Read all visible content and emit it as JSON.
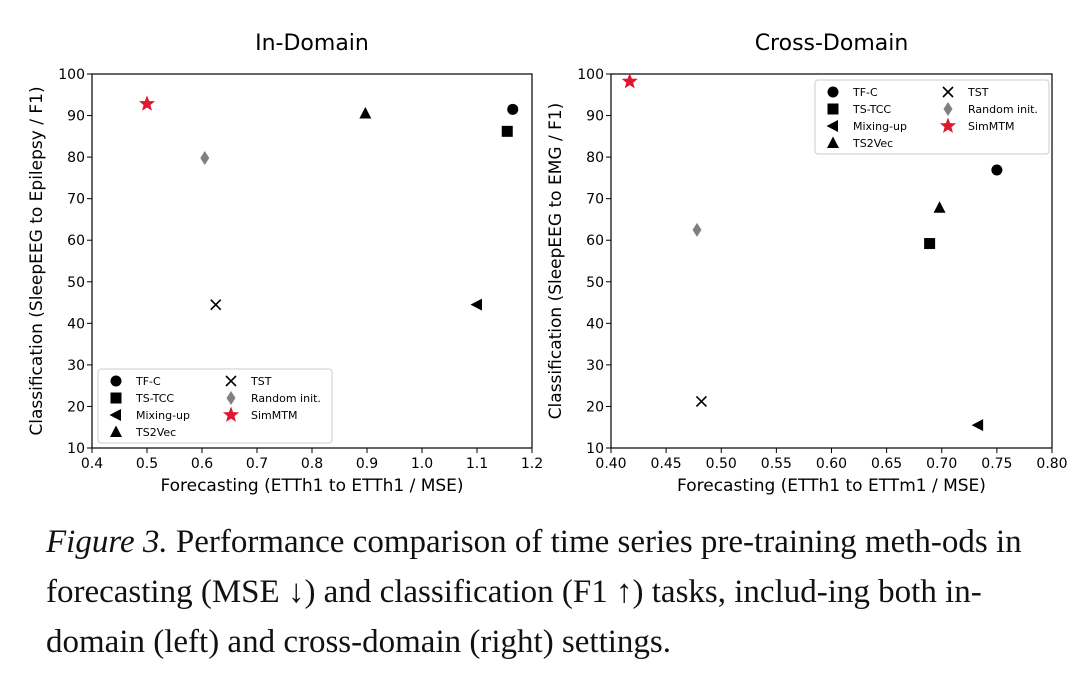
{
  "caption": {
    "label": "Figure 3.",
    "text": "Performance comparison of time series pre-training meth-ods in forecasting (MSE ↓) and classification (F1 ↑) tasks, includ-ing both in-domain (left) and cross-domain (right) settings."
  },
  "chart_data": [
    {
      "type": "scatter",
      "title": "In-Domain",
      "xlabel": "Forecasting (ETTh1 to ETTh1 / MSE)",
      "ylabel": "Classification (SleepEEG to Epilepsy / F1)",
      "xlim": [
        0.4,
        1.2
      ],
      "ylim": [
        10,
        100
      ],
      "xticks": [
        "0.4",
        "0.5",
        "0.6",
        "0.7",
        "0.8",
        "0.9",
        "1.0",
        "1.1",
        "1.2"
      ],
      "yticks": [
        "10",
        "20",
        "30",
        "40",
        "50",
        "60",
        "70",
        "80",
        "90",
        "100"
      ],
      "legend_position": "bottom-left",
      "points": [
        {
          "name": "TF-C",
          "x": 1.165,
          "y": 91.5,
          "marker": "circle",
          "color": "#000000"
        },
        {
          "name": "TS-TCC",
          "x": 1.155,
          "y": 86.2,
          "marker": "square",
          "color": "#000000"
        },
        {
          "name": "Mixing-up",
          "x": 1.1,
          "y": 44.5,
          "marker": "triangle-left",
          "color": "#000000"
        },
        {
          "name": "TS2Vec",
          "x": 0.897,
          "y": 90.5,
          "marker": "triangle-up",
          "color": "#000000"
        },
        {
          "name": "TST",
          "x": 0.625,
          "y": 44.5,
          "marker": "x",
          "color": "#000000"
        },
        {
          "name": "Random init.",
          "x": 0.605,
          "y": 79.8,
          "marker": "diamond",
          "color": "#808080"
        },
        {
          "name": "SimMTM",
          "x": 0.5,
          "y": 92.8,
          "marker": "star",
          "color": "#e0182d"
        }
      ]
    },
    {
      "type": "scatter",
      "title": "Cross-Domain",
      "xlabel": "Forecasting (ETTh1 to ETTm1 / MSE)",
      "ylabel": "Classification (SleepEEG to EMG / F1)",
      "xlim": [
        0.4,
        0.8
      ],
      "ylim": [
        10,
        100
      ],
      "xticks": [
        "0.40",
        "0.45",
        "0.50",
        "0.55",
        "0.60",
        "0.65",
        "0.70",
        "0.75",
        "0.80"
      ],
      "yticks": [
        "10",
        "20",
        "30",
        "40",
        "50",
        "60",
        "70",
        "80",
        "90",
        "100"
      ],
      "legend_position": "top-right",
      "points": [
        {
          "name": "TF-C",
          "x": 0.75,
          "y": 76.9,
          "marker": "circle",
          "color": "#000000"
        },
        {
          "name": "TS-TCC",
          "x": 0.689,
          "y": 59.2,
          "marker": "square",
          "color": "#000000"
        },
        {
          "name": "Mixing-up",
          "x": 0.733,
          "y": 15.5,
          "marker": "triangle-left",
          "color": "#000000"
        },
        {
          "name": "TS2Vec",
          "x": 0.698,
          "y": 67.8,
          "marker": "triangle-up",
          "color": "#000000"
        },
        {
          "name": "TST",
          "x": 0.482,
          "y": 21.2,
          "marker": "x",
          "color": "#000000"
        },
        {
          "name": "Random init.",
          "x": 0.478,
          "y": 62.5,
          "marker": "diamond",
          "color": "#808080"
        },
        {
          "name": "SimMTM",
          "x": 0.417,
          "y": 98.2,
          "marker": "star",
          "color": "#e0182d"
        }
      ]
    }
  ]
}
